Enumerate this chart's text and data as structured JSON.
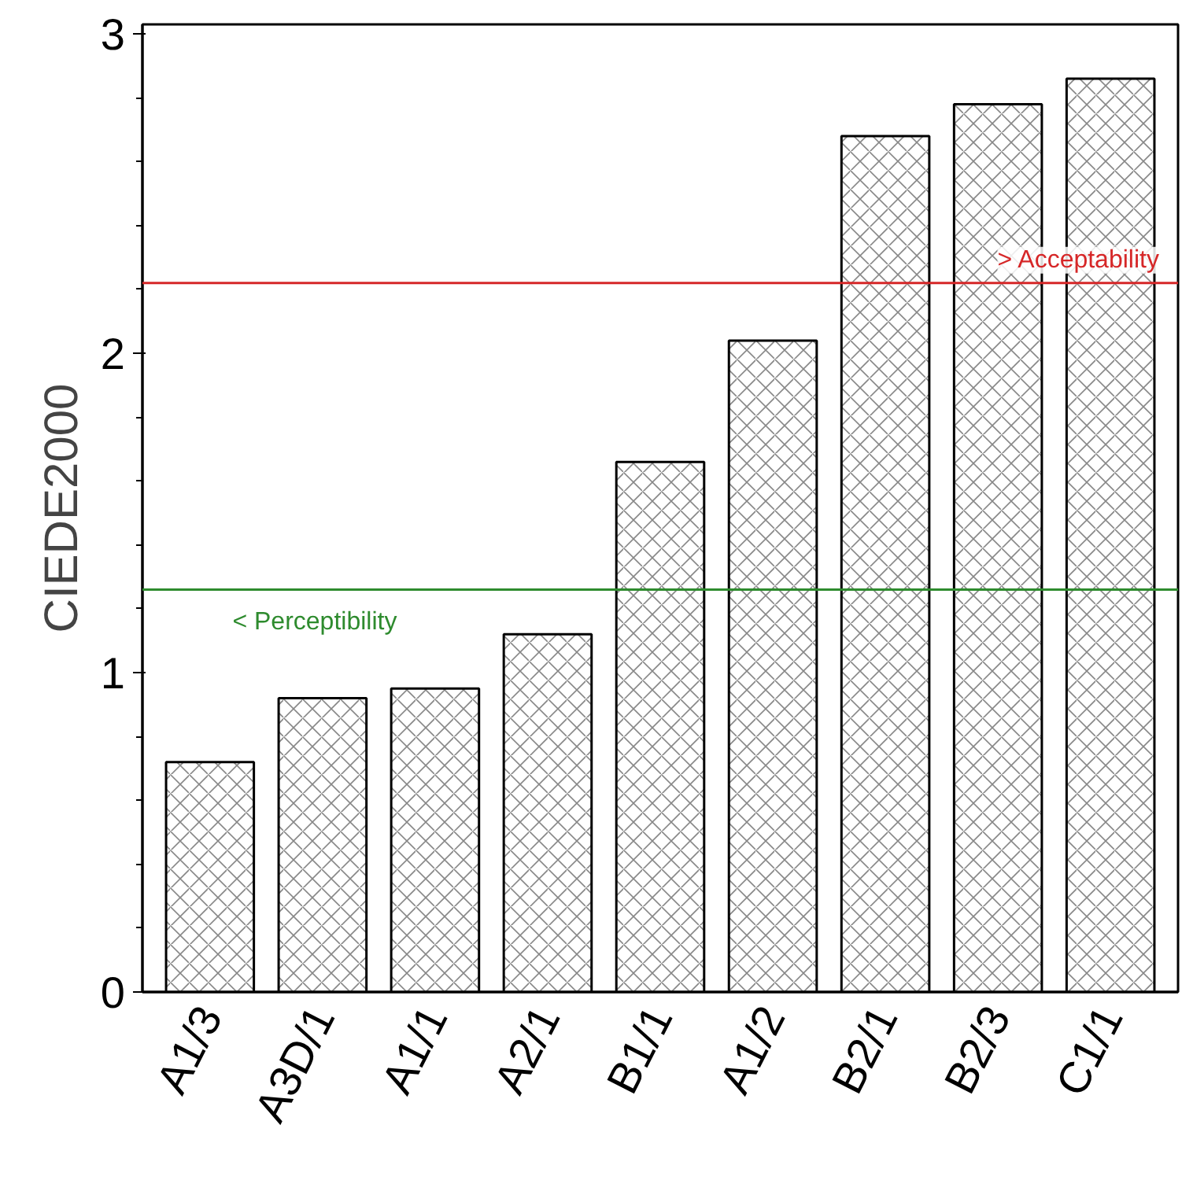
{
  "chart_data": {
    "type": "bar",
    "ylabel": "CIEDE2000",
    "categories": [
      "A1/3",
      "A3D/1",
      "A1/1",
      "A2/1",
      "B1/1",
      "A1/2",
      "B2/1",
      "B2/3",
      "C1/1"
    ],
    "values": [
      0.72,
      0.92,
      0.95,
      1.12,
      1.66,
      2.04,
      2.68,
      2.78,
      2.86
    ],
    "color": "#ffffff",
    "ylim": [
      0,
      3.03
    ],
    "yticks": [
      0,
      1,
      2,
      3
    ],
    "grid": false,
    "ref_lines": [
      {
        "axis": "y",
        "value": 2.22,
        "label": "> Acceptability",
        "color": "#d62728"
      },
      {
        "axis": "y",
        "value": 1.26,
        "label": "< Perceptibility",
        "color": "#2e8b2e"
      }
    ]
  }
}
